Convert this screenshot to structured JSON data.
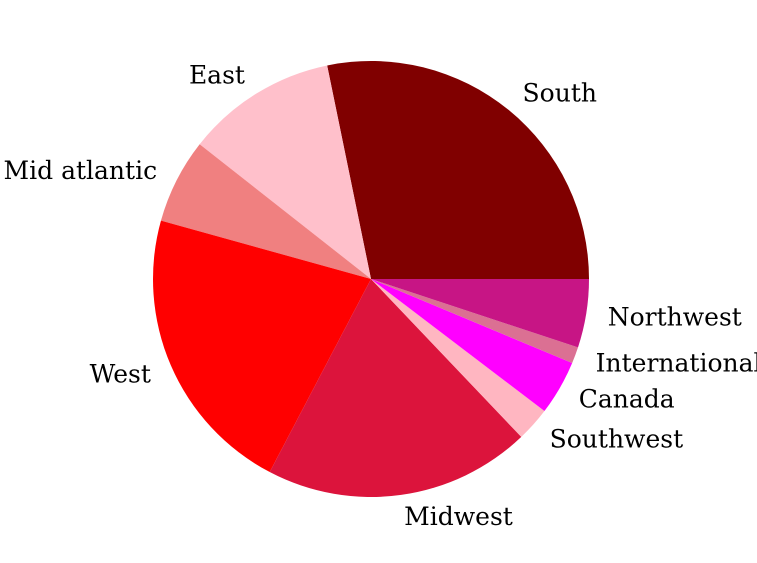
{
  "chart_data": {
    "type": "pie",
    "title": "",
    "start_angle_deg": 0,
    "direction": "counterclockwise",
    "slices": [
      {
        "label": "South",
        "value": 27.8,
        "color": "#800000"
      },
      {
        "label": "East",
        "value": 11.0,
        "color": "#ffc0cb"
      },
      {
        "label": "Mid atlantic",
        "value": 6.2,
        "color": "#f08080"
      },
      {
        "label": "West",
        "value": 21.3,
        "color": "#ff0000"
      },
      {
        "label": "Midwest",
        "value": 19.5,
        "color": "#dc143c"
      },
      {
        "label": "Southwest",
        "value": 2.5,
        "color": "#ffb6c1"
      },
      {
        "label": "Canada",
        "value": 4.0,
        "color": "#ff00ff"
      },
      {
        "label": "International",
        "value": 1.2,
        "color": "#db7093"
      },
      {
        "label": "Northwest",
        "value": 5.0,
        "color": "#c71585"
      }
    ]
  }
}
